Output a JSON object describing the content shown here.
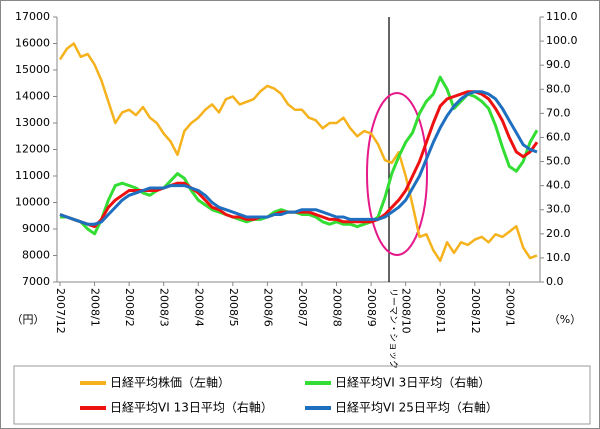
{
  "chart_data": {
    "type": "line",
    "categories": [
      "2007/12",
      null,
      null,
      null,
      null,
      "2008/1",
      null,
      null,
      null,
      null,
      "2008/2",
      null,
      null,
      null,
      null,
      "2008/3",
      null,
      null,
      null,
      null,
      "2008/4",
      null,
      null,
      null,
      null,
      "2008/5",
      null,
      null,
      null,
      null,
      "2008/6",
      null,
      null,
      null,
      null,
      "2008/7",
      null,
      null,
      null,
      null,
      "2008/8",
      null,
      null,
      null,
      null,
      "2008/9",
      null,
      null,
      null,
      null,
      "2008/10",
      null,
      null,
      null,
      null,
      "2008/11",
      null,
      null,
      null,
      null,
      "2008/12",
      null,
      null,
      null,
      null,
      "2009/1",
      null,
      null,
      null,
      null
    ],
    "series": [
      {
        "name": "日経平均株価（左軸）",
        "color": "#f5b21c",
        "axis": "y",
        "values": [
          15400,
          15800,
          16000,
          15500,
          15600,
          15200,
          14600,
          13800,
          13000,
          13400,
          13500,
          13300,
          13600,
          13200,
          13000,
          12600,
          12300,
          11800,
          12700,
          13000,
          13200,
          13500,
          13700,
          13400,
          13900,
          14000,
          13700,
          13800,
          13900,
          14200,
          14400,
          14300,
          14100,
          13700,
          13500,
          13500,
          13200,
          13100,
          12800,
          13000,
          13000,
          13200,
          12800,
          12500,
          12700,
          12600,
          12200,
          11600,
          11500,
          11900,
          11000,
          9900,
          8700,
          8800,
          8200,
          7800,
          8500,
          8100,
          8500,
          8400,
          8600,
          8700,
          8500,
          8800,
          8700,
          8900,
          9100,
          8300,
          7900,
          8000
        ]
      },
      {
        "name": "日経平均VI 3日平均（右軸）",
        "color": "#33dd33",
        "axis": "y2",
        "values": [
          27,
          27,
          26,
          25,
          22,
          20,
          26,
          34,
          40,
          41,
          40,
          39,
          37,
          36,
          38,
          39,
          42,
          45,
          43,
          38,
          34,
          32,
          30,
          29,
          28,
          27,
          26,
          25,
          26,
          26,
          27,
          29,
          30,
          29,
          29,
          28,
          28,
          27,
          25,
          24,
          25,
          24,
          24,
          23,
          24,
          25,
          27,
          35,
          45,
          52,
          58,
          62,
          70,
          75,
          78,
          85,
          80,
          72,
          75,
          78,
          77,
          75,
          72,
          65,
          56,
          48,
          46,
          50,
          58,
          63
        ]
      },
      {
        "name": "日経平均VI 13日平均（右軸）",
        "color": "#ee1111",
        "axis": "y2",
        "values": [
          28,
          27,
          26,
          25,
          24,
          23,
          26,
          31,
          34,
          36,
          38,
          38,
          38,
          38,
          38,
          39,
          40,
          41,
          41,
          39,
          37,
          34,
          31,
          30,
          28,
          27,
          27,
          26,
          26,
          27,
          27,
          28,
          29,
          29,
          29,
          29,
          29,
          28,
          27,
          26,
          26,
          25,
          25,
          25,
          25,
          25,
          26,
          28,
          31,
          34,
          38,
          44,
          50,
          58,
          66,
          73,
          76,
          77,
          78,
          79,
          79,
          78,
          76,
          72,
          67,
          60,
          54,
          52,
          54,
          58
        ]
      },
      {
        "name": "日経平均VI 25日平均（右軸）",
        "color": "#1f6fc0",
        "axis": "y2",
        "values": [
          28,
          27,
          26,
          25,
          24,
          24,
          25,
          28,
          31,
          34,
          36,
          37,
          38,
          39,
          39,
          39,
          40,
          40,
          40,
          39,
          38,
          36,
          33,
          31,
          30,
          29,
          28,
          27,
          27,
          27,
          27,
          28,
          28,
          29,
          29,
          30,
          30,
          30,
          29,
          28,
          27,
          27,
          26,
          26,
          26,
          26,
          26,
          27,
          29,
          31,
          34,
          39,
          44,
          51,
          58,
          64,
          69,
          73,
          76,
          78,
          79,
          79,
          78,
          76,
          72,
          67,
          62,
          57,
          55,
          54
        ]
      }
    ],
    "ylim": [
      7000,
      17000
    ],
    "yticks": [
      7000,
      8000,
      9000,
      10000,
      11000,
      12000,
      13000,
      14000,
      15000,
      16000,
      17000
    ],
    "y2lim": [
      0,
      110
    ],
    "y2ticks": [
      {
        "value": 0,
        "label": "0.0"
      },
      {
        "value": 10,
        "label": "10.0"
      },
      {
        "value": 20,
        "label": "20.0"
      },
      {
        "value": 30,
        "label": "30.0"
      },
      {
        "value": 40,
        "label": "40.0"
      },
      {
        "value": 50,
        "label": "50.0"
      },
      {
        "value": 60,
        "label": "60.0"
      },
      {
        "value": 70,
        "label": "70.0"
      },
      {
        "value": 80,
        "label": "80.0"
      },
      {
        "value": 90,
        "label": "90.0"
      },
      {
        "value": 100,
        "label": "100.0"
      },
      {
        "value": 110,
        "label": "110.0"
      }
    ],
    "ylabel": "（円）",
    "y2label": "（%）",
    "annotation": "リーマン・ショック",
    "grid": false
  }
}
